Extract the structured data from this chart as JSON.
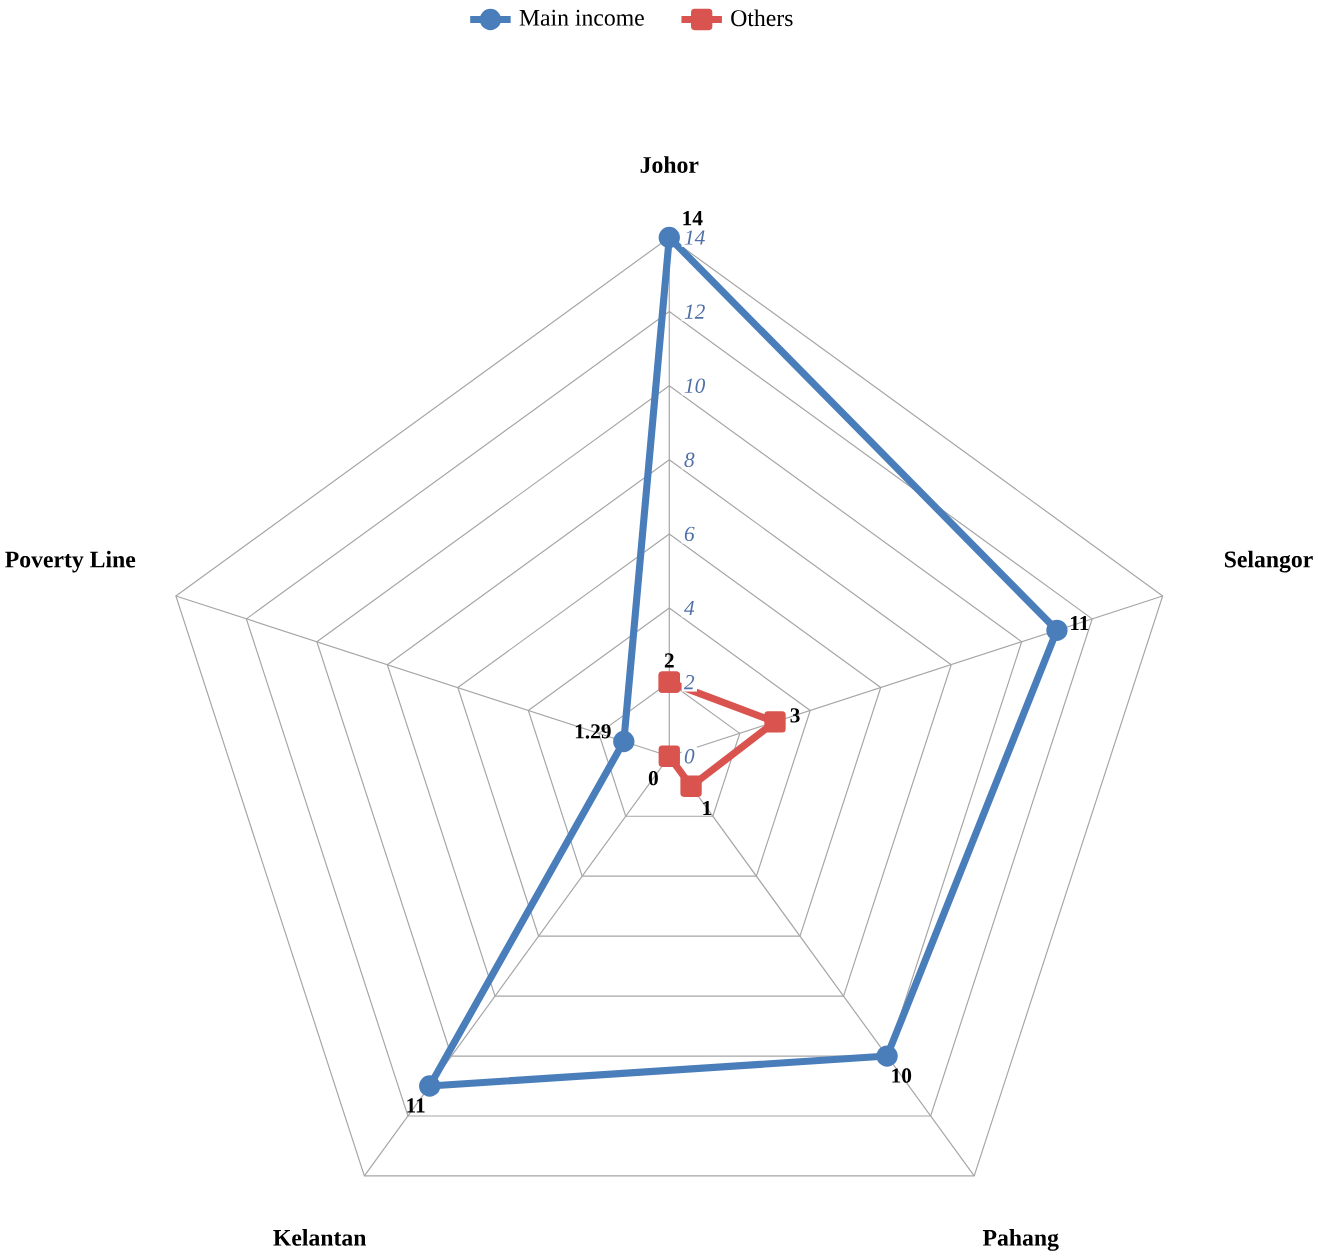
{
  "chart_data": {
    "type": "radar",
    "categories": [
      "Johor",
      "Selangor",
      "Pahang",
      "Kelantan",
      "Poverty Line"
    ],
    "series": [
      {
        "name": "Main income",
        "color": "#4a7ebb",
        "marker": "circle",
        "values": [
          14,
          11,
          10,
          11,
          1.29
        ]
      },
      {
        "name": "Others",
        "color": "#d9534f",
        "marker": "square",
        "values": [
          2,
          3,
          1,
          0,
          null
        ]
      }
    ],
    "ylim": [
      0,
      14
    ],
    "yticks": [
      0,
      2,
      4,
      6,
      8,
      10,
      12,
      14
    ],
    "grid": true,
    "legend": "top",
    "data_labels": true
  }
}
